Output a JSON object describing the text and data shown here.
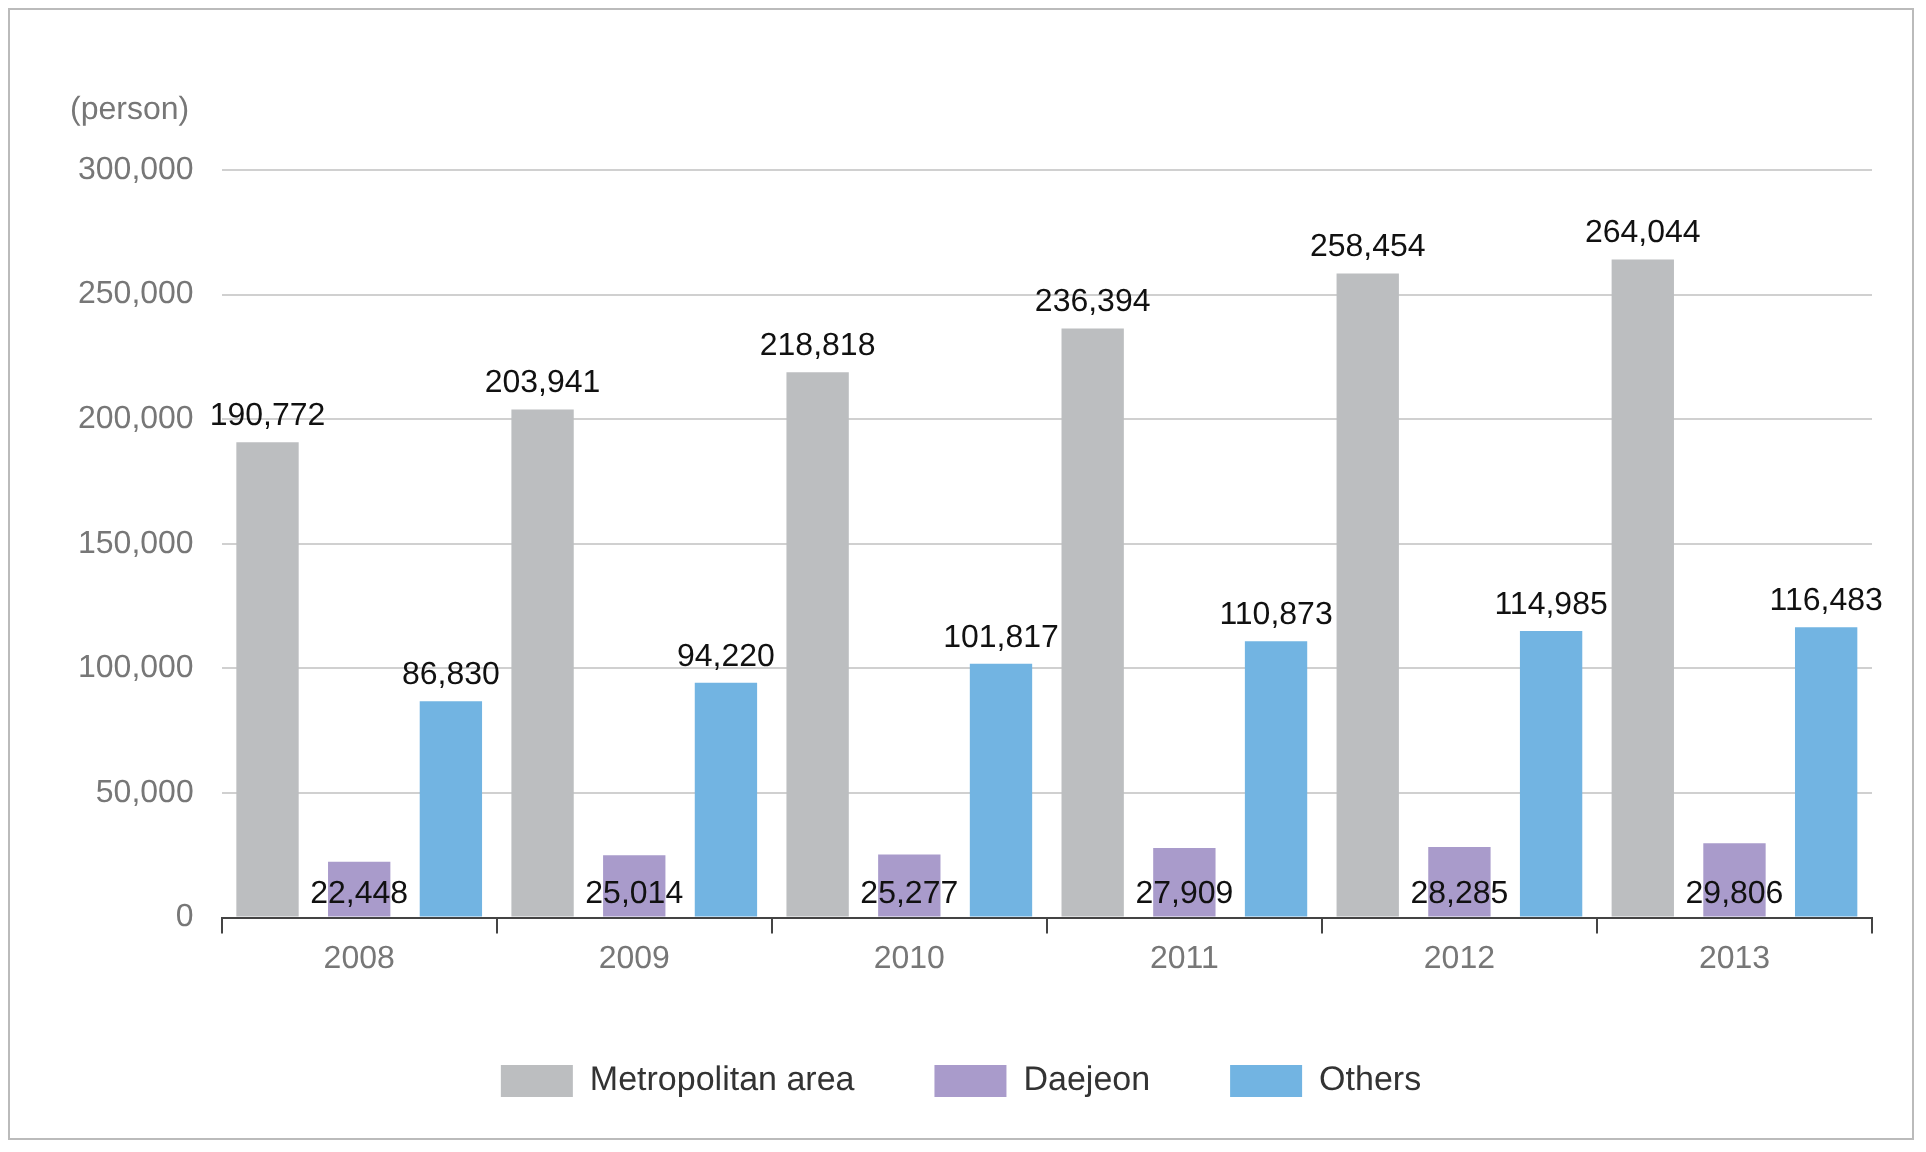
{
  "chart_data": {
    "type": "bar",
    "ylabel": "(person)",
    "categories": [
      "2008",
      "2009",
      "2010",
      "2011",
      "2012",
      "2013"
    ],
    "series": [
      {
        "name": "Metropolitan area",
        "color": "#bcbec0",
        "values": [
          190772,
          203941,
          218818,
          236394,
          258454,
          264044
        ],
        "value_labels": [
          "190,772",
          "203,941",
          "218,818",
          "236,394",
          "258,454",
          "264,044"
        ]
      },
      {
        "name": "Daejeon",
        "color": "#a99bcb",
        "values": [
          22448,
          25014,
          25277,
          27909,
          28285,
          29806
        ],
        "value_labels": [
          "22,448",
          "25,014",
          "25,277",
          "27,909",
          "28,285",
          "29,806"
        ]
      },
      {
        "name": "Others",
        "color": "#72b4e2",
        "values": [
          86830,
          94220,
          101817,
          110873,
          114985,
          116483
        ],
        "value_labels": [
          "86,830",
          "94,220",
          "101,817",
          "110,873",
          "114,985",
          "116,483"
        ]
      }
    ],
    "ylim": [
      0,
      300000
    ],
    "yticks": [
      {
        "value": 0,
        "label": "0"
      },
      {
        "value": 50000,
        "label": "50,000"
      },
      {
        "value": 100000,
        "label": "100,000"
      },
      {
        "value": 150000,
        "label": "150,000"
      },
      {
        "value": 200000,
        "label": "200,000"
      },
      {
        "value": 250000,
        "label": "250,000"
      },
      {
        "value": 300000,
        "label": "300,000"
      }
    ],
    "grid": "y",
    "legend": "bottom"
  }
}
